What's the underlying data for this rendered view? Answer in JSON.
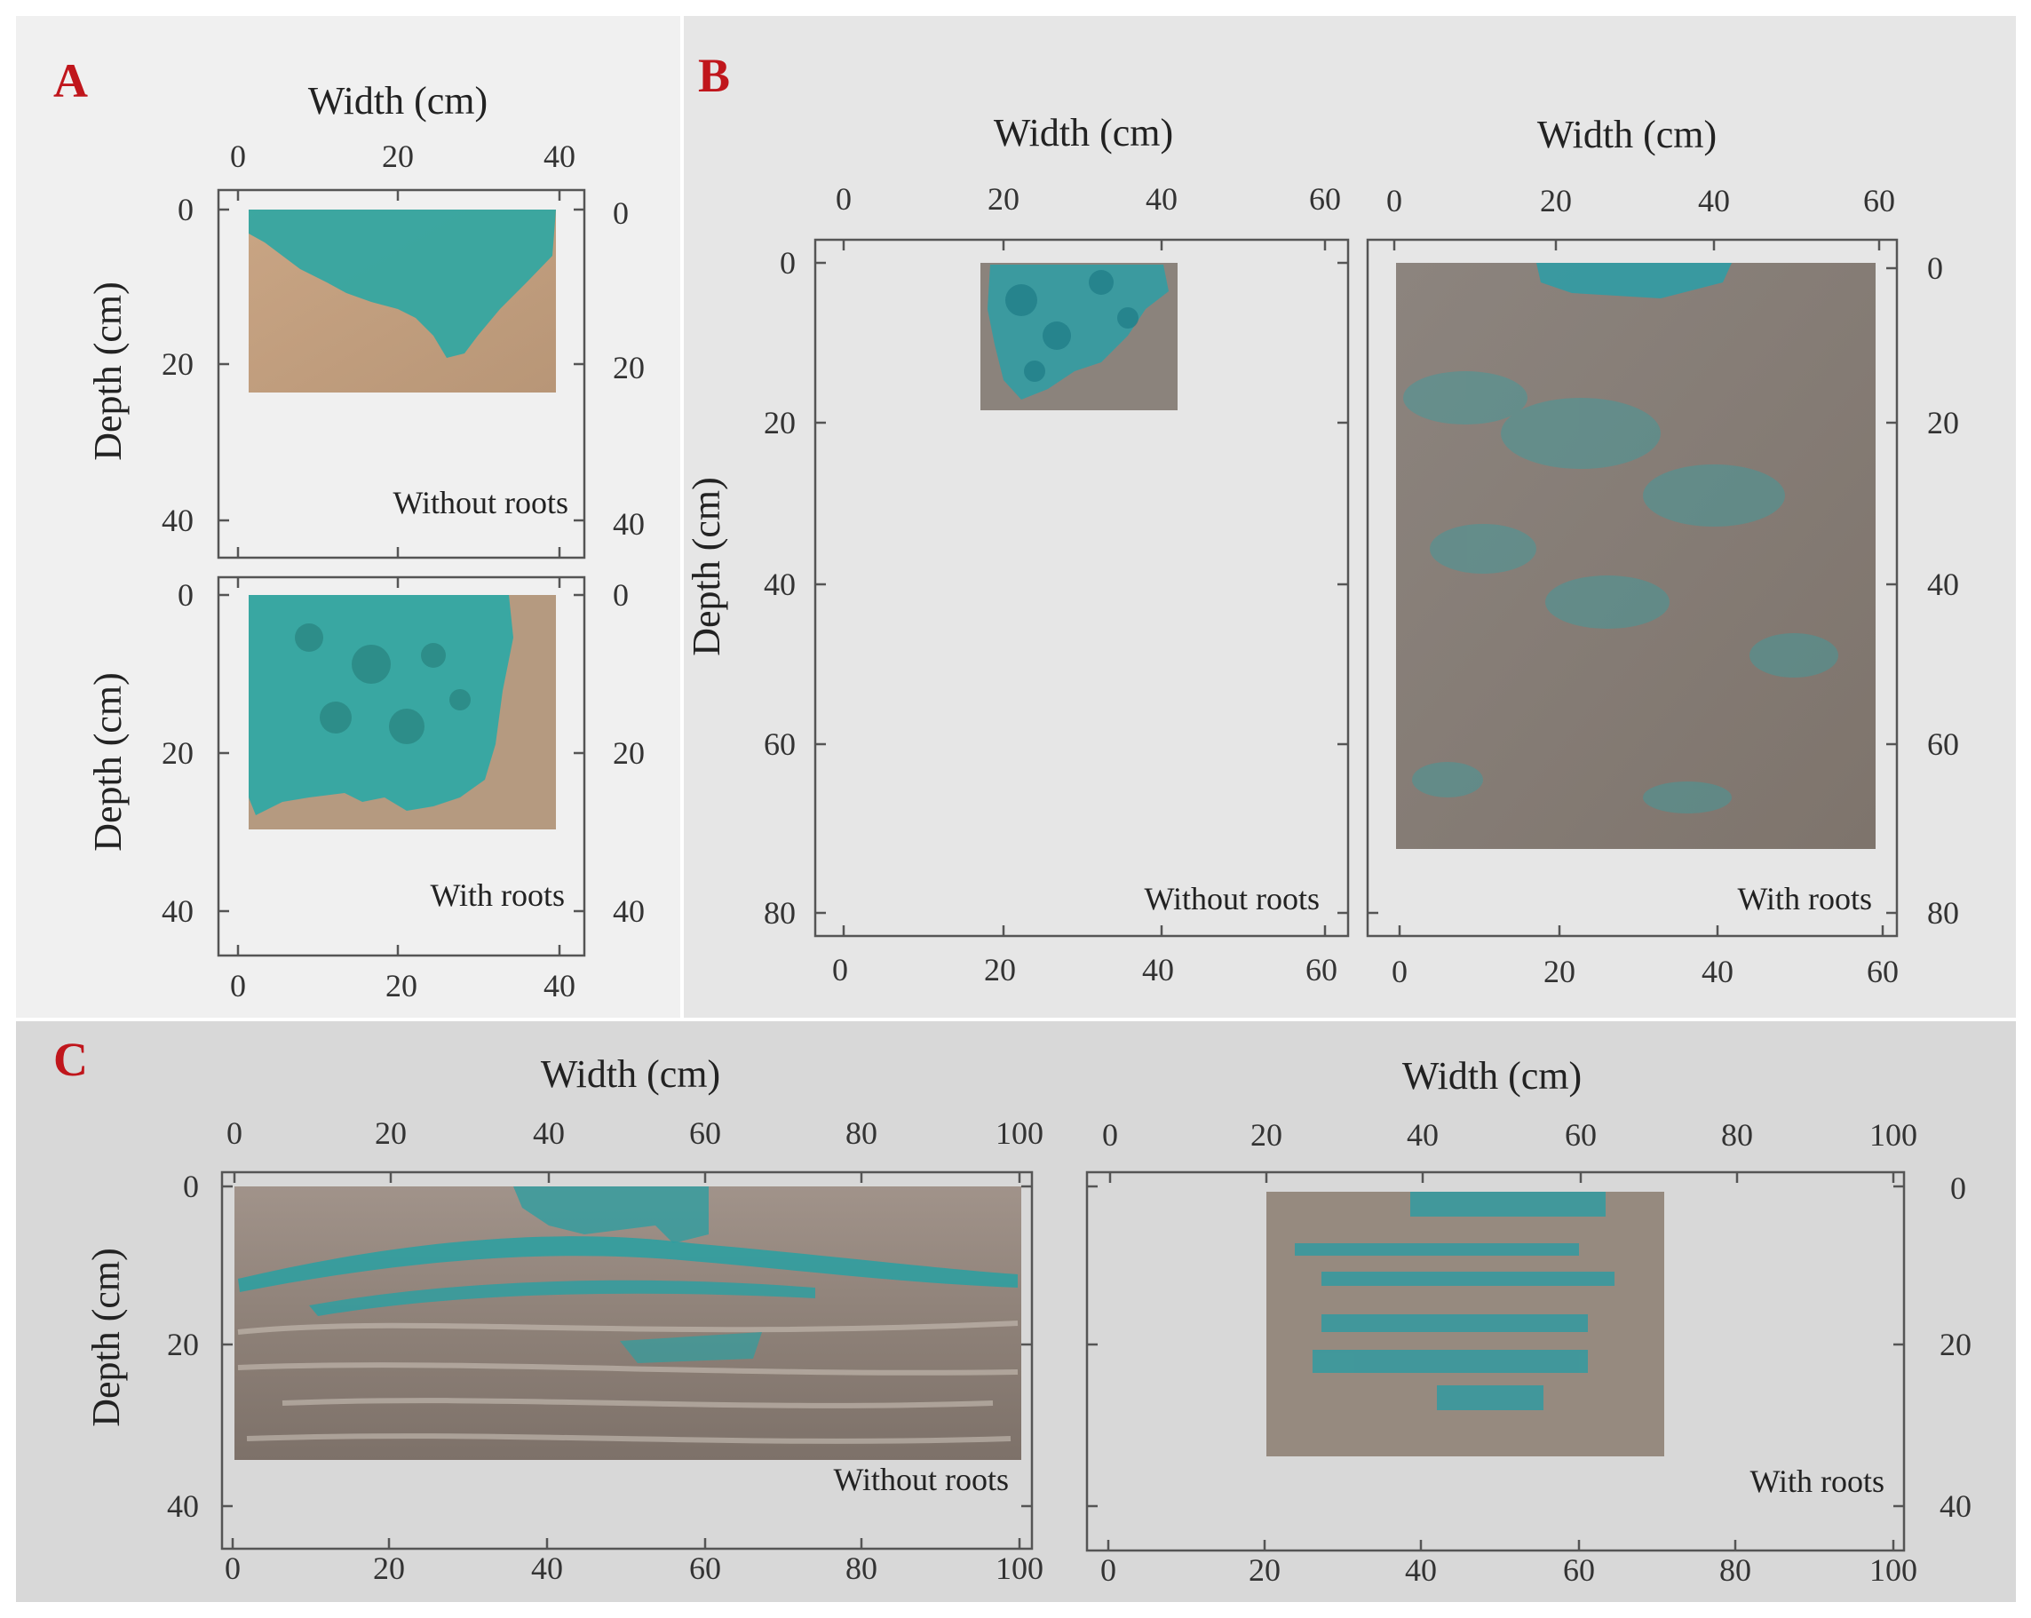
{
  "colors": {
    "panel_label": "#c0161c",
    "axis": "#555555",
    "dye": "#2fa8a4",
    "soil_sand": "#c6a383",
    "soil_loam": "#8f8780",
    "panel_A_bg": "#f0f0f0",
    "panel_B_bg": "#e6e6e6",
    "panel_C_bg": "#d8d8d8"
  },
  "panels": {
    "A": {
      "label": "A",
      "width_axis_label": "Width (cm)",
      "depth_axis_label": "Depth (cm)",
      "width_ticks": [
        "0",
        "20",
        "40"
      ],
      "depth_ticks": [
        "0",
        "20",
        "40"
      ],
      "top_plot": {
        "caption": "Without roots"
      },
      "bottom_plot": {
        "caption": "With roots"
      }
    },
    "B": {
      "label": "B",
      "width_axis_label_left": "Width (cm)",
      "width_axis_label_right": "Width (cm)",
      "depth_axis_label": "Depth (cm)",
      "width_ticks": [
        "0",
        "20",
        "40",
        "60"
      ],
      "depth_ticks": [
        "0",
        "20",
        "40",
        "60",
        "80"
      ],
      "left_plot": {
        "caption": "Without roots"
      },
      "right_plot": {
        "caption": "With roots"
      }
    },
    "C": {
      "label": "C",
      "width_axis_label_left": "Width (cm)",
      "width_axis_label_right": "Width (cm)",
      "depth_axis_label": "Depth (cm)",
      "width_ticks": [
        "0",
        "20",
        "40",
        "60",
        "80",
        "100"
      ],
      "depth_ticks": [
        "0",
        "20",
        "40"
      ],
      "left_plot": {
        "caption": "Without roots"
      },
      "right_plot": {
        "caption": "With roots"
      }
    }
  }
}
